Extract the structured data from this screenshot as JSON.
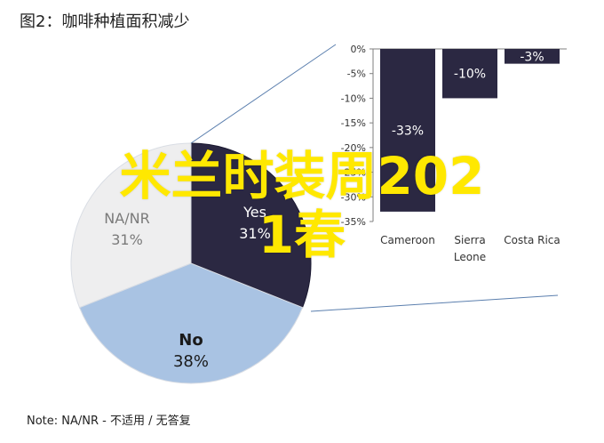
{
  "title": "图2：咖啡种植面积减少",
  "note": "Note: NA/NR - 不适用 / 无答复",
  "overlay": {
    "line1": "米兰时装周202",
    "line2": "1春"
  },
  "colors": {
    "navy": "#2b2842",
    "blue": "#a9c3e3",
    "light": "#eeeeef",
    "axis": "#7f7f7f",
    "connector": "#5b7fae",
    "overlay": "#ffe800"
  },
  "chart_data": [
    {
      "type": "pie",
      "labels": [
        "Yes",
        "No",
        "NA/NR"
      ],
      "values": [
        31,
        38,
        31
      ],
      "value_labels": [
        "31%",
        "38%",
        "31%"
      ]
    },
    {
      "type": "bar",
      "categories": [
        "Cameroon",
        "Sierra\nLeone",
        "Costa Rica"
      ],
      "values": [
        -33,
        -10,
        -3
      ],
      "value_labels": [
        "-33%",
        "-10%",
        "-3%"
      ],
      "ylim": [
        -35,
        0
      ],
      "yticks": [
        "0%",
        "-5%",
        "-10%",
        "-15%",
        "-20%",
        "-25%",
        "-30%",
        "-35%"
      ],
      "grid": false
    }
  ]
}
